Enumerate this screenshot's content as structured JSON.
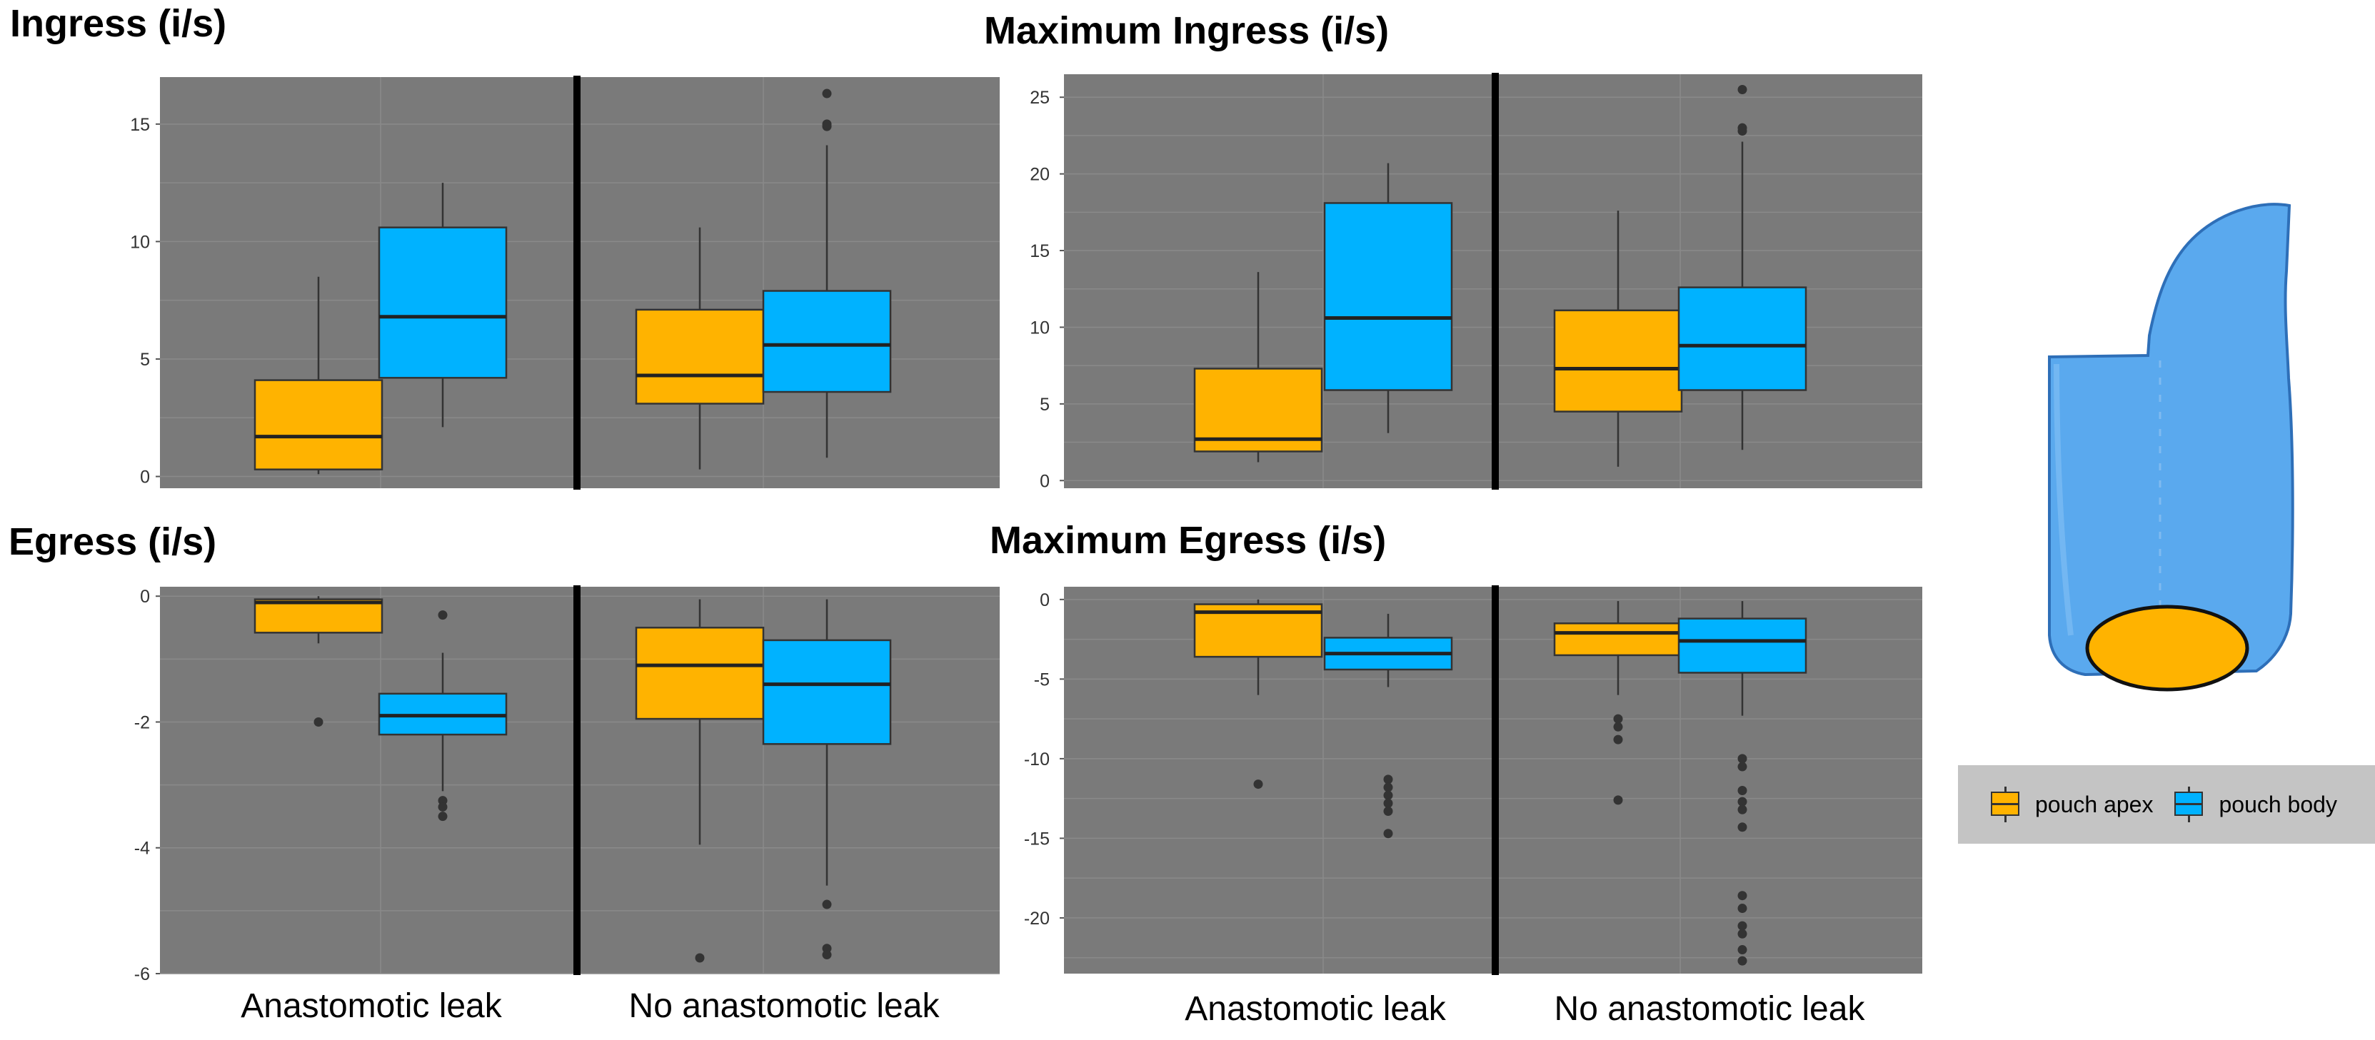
{
  "colors": {
    "apex": "#FFB300",
    "body": "#00B2FF",
    "panel_bg": "#7a7a7a",
    "grid": "#8a8a8a",
    "pouch_body": "#5aa9ee"
  },
  "legend": {
    "items": [
      {
        "label": "pouch apex",
        "color": "#FFB300"
      },
      {
        "label": "pouch body",
        "color": "#00B2FF"
      }
    ]
  },
  "illustration": {
    "description": "pouch-illustration"
  },
  "chart_data": [
    {
      "type": "box",
      "title": "Ingress (i/s)",
      "groups": [
        "Anastomotic leak",
        "No anastomotic leak"
      ],
      "series_names": [
        "pouch apex",
        "pouch body"
      ],
      "ylim": [
        -0.5,
        17
      ],
      "yticks": [
        0,
        5,
        10,
        15
      ],
      "boxes": [
        {
          "group": "Anastomotic leak",
          "series": "pouch apex",
          "whislo": 0.1,
          "q1": 0.3,
          "med": 1.7,
          "q3": 4.1,
          "whishi": 8.5,
          "outliers": []
        },
        {
          "group": "Anastomotic leak",
          "series": "pouch body",
          "whislo": 2.1,
          "q1": 4.2,
          "med": 6.8,
          "q3": 10.6,
          "whishi": 12.5,
          "outliers": []
        },
        {
          "group": "No anastomotic leak",
          "series": "pouch apex",
          "whislo": 0.3,
          "q1": 3.1,
          "med": 4.3,
          "q3": 7.1,
          "whishi": 10.6,
          "outliers": []
        },
        {
          "group": "No anastomotic leak",
          "series": "pouch body",
          "whislo": 0.8,
          "q1": 3.6,
          "med": 5.6,
          "q3": 7.9,
          "whishi": 14.1,
          "outliers": [
            14.9,
            15.0,
            16.3
          ]
        }
      ]
    },
    {
      "type": "box",
      "title": "Maximum Ingress (i/s)",
      "groups": [
        "Anastomotic leak",
        "No anastomotic leak"
      ],
      "series_names": [
        "pouch apex",
        "pouch body"
      ],
      "ylim": [
        -0.5,
        26.5
      ],
      "yticks": [
        0,
        5,
        10,
        15,
        20,
        25
      ],
      "boxes": [
        {
          "group": "Anastomotic leak",
          "series": "pouch apex",
          "whislo": 1.2,
          "q1": 1.9,
          "med": 2.7,
          "q3": 7.3,
          "whishi": 13.6,
          "outliers": []
        },
        {
          "group": "Anastomotic leak",
          "series": "pouch body",
          "whislo": 3.1,
          "q1": 5.9,
          "med": 10.6,
          "q3": 18.1,
          "whishi": 20.7,
          "outliers": []
        },
        {
          "group": "No anastomotic leak",
          "series": "pouch apex",
          "whislo": 0.9,
          "q1": 4.5,
          "med": 7.3,
          "q3": 11.1,
          "whishi": 17.6,
          "outliers": []
        },
        {
          "group": "No anastomotic leak",
          "series": "pouch body",
          "whislo": 2.0,
          "q1": 5.9,
          "med": 8.8,
          "q3": 12.6,
          "whishi": 22.1,
          "outliers": [
            22.8,
            23.0,
            25.5
          ]
        }
      ]
    },
    {
      "type": "box",
      "title": "Egress (i/s)",
      "groups": [
        "Anastomotic leak",
        "No anastomotic leak"
      ],
      "series_names": [
        "pouch apex",
        "pouch body"
      ],
      "ylim": [
        -6,
        0.15
      ],
      "yticks": [
        0,
        -2,
        -4,
        -6
      ],
      "boxes": [
        {
          "group": "Anastomotic leak",
          "series": "pouch apex",
          "whislo": -0.75,
          "q1": -0.58,
          "med": -0.1,
          "q3": -0.05,
          "whishi": 0.0,
          "outliers": [
            -2.0
          ]
        },
        {
          "group": "Anastomotic leak",
          "series": "pouch body",
          "whislo": -3.1,
          "q1": -2.2,
          "med": -1.9,
          "q3": -1.55,
          "whishi": -0.9,
          "outliers": [
            -0.3,
            -3.25,
            -3.35,
            -3.5
          ]
        },
        {
          "group": "No anastomotic leak",
          "series": "pouch apex",
          "whislo": -3.95,
          "q1": -1.95,
          "med": -1.1,
          "q3": -0.5,
          "whishi": -0.05,
          "outliers": [
            -5.75
          ]
        },
        {
          "group": "No anastomotic leak",
          "series": "pouch body",
          "whislo": -4.6,
          "q1": -2.35,
          "med": -1.4,
          "q3": -0.7,
          "whishi": -0.05,
          "outliers": [
            -4.9,
            -5.6,
            -5.7
          ]
        }
      ]
    },
    {
      "type": "box",
      "title": "Maximum Egress (i/s)",
      "groups": [
        "Anastomotic leak",
        "No anastomotic leak"
      ],
      "series_names": [
        "pouch apex",
        "pouch body"
      ],
      "ylim": [
        -23.5,
        0.8
      ],
      "yticks": [
        0,
        -5,
        -10,
        -15,
        -20
      ],
      "boxes": [
        {
          "group": "Anastomotic leak",
          "series": "pouch apex",
          "whislo": -6.0,
          "q1": -3.6,
          "med": -0.8,
          "q3": -0.3,
          "whishi": 0.0,
          "outliers": [
            -11.6
          ]
        },
        {
          "group": "Anastomotic leak",
          "series": "pouch body",
          "whislo": -5.5,
          "q1": -4.4,
          "med": -3.4,
          "q3": -2.4,
          "whishi": -0.9,
          "outliers": [
            -11.3,
            -11.8,
            -12.3,
            -12.8,
            -13.3,
            -14.7
          ]
        },
        {
          "group": "No anastomotic leak",
          "series": "pouch apex",
          "whislo": -6.0,
          "q1": -3.5,
          "med": -2.1,
          "q3": -1.5,
          "whishi": -0.1,
          "outliers": [
            -7.5,
            -8.0,
            -8.8,
            -12.6
          ]
        },
        {
          "group": "No anastomotic leak",
          "series": "pouch body",
          "whislo": -7.3,
          "q1": -4.6,
          "med": -2.6,
          "q3": -1.2,
          "whishi": -0.1,
          "outliers": [
            -10.0,
            -10.5,
            -12.0,
            -12.7,
            -13.2,
            -14.3,
            -18.6,
            -19.4,
            -20.5,
            -21.0,
            -22.0,
            -22.7
          ]
        }
      ]
    }
  ]
}
